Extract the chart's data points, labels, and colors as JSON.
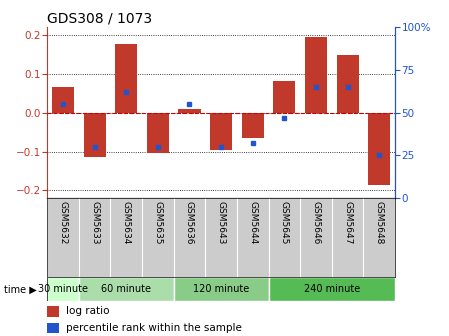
{
  "title": "GDS308 / 1073",
  "samples": [
    "GSM5632",
    "GSM5633",
    "GSM5634",
    "GSM5635",
    "GSM5636",
    "GSM5643",
    "GSM5644",
    "GSM5645",
    "GSM5646",
    "GSM5647",
    "GSM5648"
  ],
  "log_ratio": [
    0.065,
    -0.115,
    0.175,
    -0.105,
    0.01,
    -0.095,
    -0.065,
    0.08,
    0.195,
    0.148,
    -0.185
  ],
  "percentile": [
    55,
    30,
    62,
    30,
    55,
    30,
    32,
    47,
    65,
    65,
    25
  ],
  "ylim": [
    -0.22,
    0.22
  ],
  "yticks_left": [
    -0.2,
    -0.1,
    0,
    0.1,
    0.2
  ],
  "yticks_right": [
    0,
    25,
    50,
    75,
    100
  ],
  "bar_color": "#c0392b",
  "dot_color": "#2255cc",
  "zero_line_color": "#cc0000",
  "group_ranges": [
    [
      0,
      1,
      "30 minute",
      "#ccffcc"
    ],
    [
      1,
      4,
      "60 minute",
      "#aaddaa"
    ],
    [
      4,
      7,
      "120 minute",
      "#88cc88"
    ],
    [
      7,
      11,
      "240 minute",
      "#55bb55"
    ]
  ],
  "legend_bar_label": "log ratio",
  "legend_dot_label": "percentile rank within the sample",
  "title_fontsize": 10,
  "tick_fontsize": 7.5,
  "label_fontsize": 6.5
}
